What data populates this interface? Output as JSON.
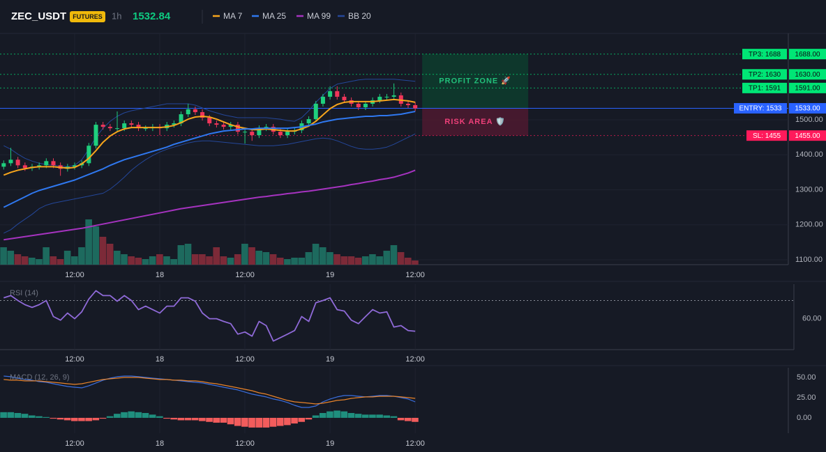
{
  "header": {
    "symbol": "ZEC_USDT",
    "badge": "FUTURES",
    "interval": "1h",
    "price": 1532.84
  },
  "chart_data": [
    {
      "type": "candlestick",
      "categories": [
        null,
        null,
        null,
        null,
        null,
        null,
        null,
        null,
        null,
        null,
        "12:00",
        null,
        null,
        null,
        null,
        null,
        null,
        null,
        null,
        null,
        null,
        null,
        "18",
        null,
        null,
        null,
        null,
        null,
        null,
        null,
        null,
        null,
        null,
        null,
        "12:00",
        null,
        null,
        null,
        null,
        null,
        null,
        null,
        null,
        null,
        null,
        null,
        "19",
        null,
        null,
        null,
        null,
        null,
        null,
        null,
        null,
        null,
        null,
        null,
        "12:00"
      ],
      "open": [
        1366,
        1376,
        1386,
        1370,
        1362,
        1366,
        1370,
        1382,
        1370,
        1360,
        1366,
        1370,
        1376,
        1426,
        1486,
        1480,
        1476,
        1476,
        1490,
        1486,
        1476,
        1476,
        1480,
        1476,
        1486,
        1490,
        1516,
        1530,
        1522,
        1506,
        1490,
        1486,
        1480,
        1486,
        1466,
        1466,
        1456,
        1476,
        1480,
        1466,
        1456,
        1466,
        1470,
        1490,
        1502,
        1546,
        1566,
        1582,
        1566,
        1556,
        1546,
        1536,
        1546,
        1556,
        1566,
        1566,
        1570,
        1546,
        1542
      ],
      "high": [
        1384,
        1420,
        1394,
        1378,
        1374,
        1378,
        1390,
        1390,
        1378,
        1374,
        1378,
        1384,
        1434,
        1494,
        1494,
        1488,
        1524,
        1498,
        1498,
        1494,
        1484,
        1488,
        1488,
        1494,
        1498,
        1524,
        1546,
        1538,
        1530,
        1514,
        1498,
        1494,
        1494,
        1494,
        1474,
        1474,
        1484,
        1488,
        1488,
        1474,
        1474,
        1478,
        1498,
        1510,
        1554,
        1574,
        1596,
        1596,
        1574,
        1564,
        1554,
        1554,
        1564,
        1574,
        1574,
        1604,
        1578,
        1554,
        1550
      ],
      "low": [
        1358,
        1368,
        1362,
        1354,
        1354,
        1358,
        1362,
        1362,
        1340,
        1352,
        1358,
        1362,
        1368,
        1418,
        1472,
        1468,
        1468,
        1468,
        1478,
        1468,
        1468,
        1468,
        1456,
        1468,
        1478,
        1482,
        1508,
        1514,
        1498,
        1482,
        1478,
        1472,
        1472,
        1458,
        1432,
        1440,
        1448,
        1468,
        1458,
        1448,
        1448,
        1458,
        1462,
        1482,
        1494,
        1538,
        1558,
        1558,
        1548,
        1538,
        1528,
        1528,
        1538,
        1548,
        1558,
        1558,
        1538,
        1534,
        1525
      ],
      "close": [
        1376,
        1386,
        1370,
        1362,
        1366,
        1370,
        1382,
        1370,
        1360,
        1366,
        1370,
        1376,
        1426,
        1486,
        1480,
        1476,
        1476,
        1490,
        1486,
        1476,
        1476,
        1480,
        1476,
        1486,
        1490,
        1516,
        1530,
        1522,
        1506,
        1490,
        1486,
        1480,
        1486,
        1466,
        1466,
        1456,
        1476,
        1480,
        1466,
        1456,
        1466,
        1470,
        1490,
        1502,
        1546,
        1566,
        1582,
        1566,
        1556,
        1546,
        1536,
        1546,
        1556,
        1566,
        1566,
        1570,
        1546,
        1542,
        1532.84
      ],
      "volume": [
        25,
        20,
        15,
        12,
        10,
        8,
        25,
        12,
        8,
        20,
        12,
        25,
        65,
        55,
        40,
        30,
        20,
        15,
        12,
        10,
        8,
        12,
        15,
        12,
        8,
        28,
        30,
        15,
        15,
        12,
        25,
        12,
        10,
        15,
        30,
        25,
        20,
        18,
        15,
        10,
        8,
        10,
        10,
        18,
        30,
        25,
        18,
        15,
        12,
        12,
        10,
        12,
        15,
        12,
        20,
        28,
        18,
        10,
        6
      ],
      "up_color": "#1fcf7d",
      "down_color": "#f0365a",
      "volume_up_color": "#1d6a5e",
      "volume_down_color": "#7c2a38",
      "series": [
        {
          "name": "MA 7",
          "color": "#f7a51c",
          "values": [
            1342,
            1350,
            1356,
            1360,
            1364,
            1366,
            1366,
            1366,
            1364,
            1362,
            1364,
            1374,
            1390,
            1412,
            1436,
            1454,
            1466,
            1474,
            1478,
            1478,
            1478,
            1478,
            1478,
            1480,
            1484,
            1492,
            1502,
            1508,
            1510,
            1508,
            1502,
            1494,
            1486,
            1480,
            1476,
            1472,
            1472,
            1474,
            1472,
            1470,
            1468,
            1468,
            1474,
            1482,
            1496,
            1514,
            1532,
            1544,
            1550,
            1552,
            1552,
            1552,
            1552,
            1554,
            1556,
            1558,
            1556,
            1554,
            1550
          ]
        },
        {
          "name": "MA 25",
          "color": "#2f78f0",
          "values": [
            1250,
            1260,
            1270,
            1280,
            1290,
            1298,
            1304,
            1310,
            1316,
            1322,
            1328,
            1336,
            1344,
            1352,
            1360,
            1370,
            1378,
            1386,
            1392,
            1398,
            1404,
            1410,
            1416,
            1422,
            1430,
            1436,
            1442,
            1448,
            1454,
            1460,
            1464,
            1468,
            1470,
            1472,
            1474,
            1474,
            1476,
            1476,
            1476,
            1476,
            1476,
            1478,
            1480,
            1484,
            1488,
            1494,
            1498,
            1502,
            1504,
            1506,
            1508,
            1510,
            1510,
            1512,
            1512,
            1514,
            1516,
            1520,
            1524
          ]
        },
        {
          "name": "MA 99",
          "color": "#a633c0",
          "values": [
            1157,
            1160,
            1163,
            1166,
            1169,
            1172,
            1175,
            1178,
            1181,
            1184,
            1187,
            1190,
            1194,
            1198,
            1202,
            1206,
            1210,
            1214,
            1218,
            1222,
            1226,
            1230,
            1234,
            1238,
            1242,
            1246,
            1249,
            1252,
            1255,
            1258,
            1261,
            1264,
            1267,
            1270,
            1273,
            1276,
            1279,
            1281,
            1284,
            1286,
            1289,
            1291,
            1294,
            1296,
            1299,
            1302,
            1305,
            1308,
            1311,
            1315,
            1318,
            1322,
            1325,
            1329,
            1332,
            1336,
            1342,
            1348,
            1356
          ]
        },
        {
          "name": "BB 20",
          "color": "#24479a",
          "values": [
            1426,
            1416,
            1402,
            1390,
            1382,
            1376,
            1372,
            1370,
            1368,
            1366,
            1370,
            1386,
            1416,
            1450,
            1476,
            1496,
            1510,
            1520,
            1526,
            1530,
            1534,
            1538,
            1542,
            1546,
            1546,
            1546,
            1546,
            1542,
            1534,
            1526,
            1520,
            1514,
            1510,
            1506,
            1506,
            1506,
            1506,
            1506,
            1504,
            1502,
            1498,
            1496,
            1506,
            1526,
            1550,
            1570,
            1590,
            1602,
            1606,
            1610,
            1614,
            1616,
            1616,
            1616,
            1616,
            1616,
            1614,
            1612,
            1610
          ],
          "lower": [
            1176,
            1186,
            1202,
            1216,
            1230,
            1246,
            1256,
            1262,
            1266,
            1270,
            1274,
            1278,
            1282,
            1286,
            1290,
            1302,
            1318,
            1336,
            1356,
            1372,
            1386,
            1398,
            1408,
            1416,
            1422,
            1428,
            1434,
            1438,
            1440,
            1440,
            1438,
            1436,
            1434,
            1432,
            1430,
            1428,
            1426,
            1426,
            1426,
            1428,
            1430,
            1434,
            1438,
            1442,
            1446,
            1448,
            1446,
            1440,
            1432,
            1424,
            1418,
            1416,
            1416,
            1418,
            1422,
            1430,
            1440,
            1450,
            1460
          ]
        }
      ],
      "ylim": [
        1086,
        1747
      ],
      "yticks": [
        {
          "value": 1100,
          "label": "1100.00"
        },
        {
          "value": 1200,
          "label": "1200.00"
        },
        {
          "value": 1300,
          "label": "1300.00"
        },
        {
          "value": 1400,
          "label": "1400.00"
        },
        {
          "value": 1500,
          "label": "1500.00"
        }
      ],
      "grid": true,
      "levels": [
        {
          "label": "TP3: 1688",
          "value": 1688,
          "price_label": "1688.00",
          "color": "#00e676",
          "text_color": "#0b0e14",
          "line_style": "dotted"
        },
        {
          "label": "TP2: 1630",
          "value": 1630,
          "price_label": "1630.00",
          "color": "#00e676",
          "text_color": "#0b0e14",
          "line_style": "dotted"
        },
        {
          "label": "TP1: 1591",
          "value": 1591,
          "price_label": "1591.00",
          "color": "#00e676",
          "text_color": "#0b0e14",
          "line_style": "dotted"
        },
        {
          "label": "ENTRY: 1533",
          "value": 1533,
          "price_label": "1533.00",
          "color": "#2962ff",
          "text_color": "#ffffff",
          "line_style": "solid"
        },
        {
          "label": "SL: 1455",
          "value": 1455,
          "price_label": "1455.00",
          "color": "#ff1a5b",
          "text_color": "#ffffff",
          "line_style": "dotted"
        }
      ],
      "zones": [
        {
          "label": "PROFIT ZONE 🚀",
          "from": 1533,
          "to": 1688,
          "color": "#0d3b2e",
          "text_color": "#22c07a"
        },
        {
          "label": "RISK AREA 🛡️",
          "from": 1455,
          "to": 1533,
          "color": "#4a1a30",
          "text_color": "#f0407a"
        }
      ]
    },
    {
      "type": "line",
      "title": "RSI (14)",
      "categories": [
        null,
        null,
        null,
        null,
        null,
        null,
        null,
        null,
        null,
        null,
        "12:00",
        null,
        null,
        null,
        null,
        null,
        null,
        null,
        null,
        null,
        null,
        null,
        "18",
        null,
        null,
        null,
        null,
        null,
        null,
        null,
        null,
        null,
        null,
        null,
        "12:00",
        null,
        null,
        null,
        null,
        null,
        null,
        null,
        null,
        null,
        null,
        null,
        "19",
        null,
        null,
        null,
        null,
        null,
        null,
        null,
        null,
        null,
        null,
        null,
        "12:00"
      ],
      "series": [
        {
          "color": "#8f6ad8",
          "values": [
            71.5,
            72.7,
            70,
            67.7,
            66.2,
            67.7,
            70,
            61.2,
            59.2,
            63.1,
            60,
            63.8,
            70.8,
            75.4,
            72.7,
            72.7,
            69.6,
            72.7,
            70,
            65,
            66.9,
            65,
            63.1,
            66.9,
            66.9,
            71.5,
            71.5,
            69.6,
            63.1,
            60,
            60,
            58.5,
            57.3,
            51.5,
            52.7,
            50.4,
            58.5,
            56.2,
            47.7,
            49.6,
            51.5,
            53.5,
            61.2,
            58.5,
            68.8,
            70,
            71.5,
            65,
            64.2,
            59.2,
            57.3,
            61.2,
            65,
            63.1,
            63.8,
            55.4,
            56.2,
            53.5,
            53.1
          ]
        }
      ],
      "hlines": [
        70
      ],
      "ylim": [
        43,
        79
      ],
      "yticks": [
        {
          "value": 60,
          "label": "60.00"
        }
      ]
    },
    {
      "type": "macd",
      "title": "MACD (12, 26, 9)",
      "categories": [
        null,
        null,
        null,
        null,
        null,
        null,
        null,
        null,
        null,
        null,
        "12:00",
        null,
        null,
        null,
        null,
        null,
        null,
        null,
        null,
        null,
        null,
        null,
        "18",
        null,
        null,
        null,
        null,
        null,
        null,
        null,
        null,
        null,
        null,
        null,
        "12:00",
        null,
        null,
        null,
        null,
        null,
        null,
        null,
        null,
        null,
        null,
        null,
        "19",
        null,
        null,
        null,
        null,
        null,
        null,
        null,
        null,
        null,
        null,
        null,
        "12:00"
      ],
      "series": [
        {
          "color": "#3a6fe0",
          "values": [
            51.7,
            50.9,
            49.1,
            47.4,
            46.6,
            44.8,
            44,
            42.2,
            40.5,
            38.8,
            37.9,
            37.1,
            39.7,
            43.1,
            46.6,
            49.1,
            50.9,
            51.7,
            51.7,
            50.9,
            50,
            49.1,
            48.3,
            47.4,
            46.6,
            45.7,
            44.8,
            44,
            43.1,
            41.4,
            39.7,
            37.9,
            36.2,
            34.5,
            31.9,
            29.3,
            27.6,
            25.9,
            23.3,
            21.6,
            19,
            15.5,
            12.9,
            12.9,
            14.7,
            19.8,
            23.3,
            25.9,
            27.6,
            27.6,
            26.7,
            25.9,
            26.7,
            27.6,
            27.6,
            26.7,
            25,
            23.3,
            19.8
          ]
        },
        {
          "color": "#e8832a",
          "values": [
            47.4,
            46.6,
            46.6,
            45.7,
            45.7,
            45.7,
            44.8,
            44,
            43.1,
            42.2,
            41.4,
            42.2,
            44,
            45.7,
            47.4,
            48.3,
            49.1,
            50,
            50,
            50,
            49.1,
            48.3,
            47.4,
            47.4,
            46.6,
            46.6,
            45.7,
            45.7,
            44.8,
            43.1,
            42.2,
            40.5,
            38.8,
            37.1,
            35.3,
            33.6,
            31,
            29.3,
            26.7,
            24.1,
            21.6,
            19.8,
            19,
            18.1,
            17.2,
            18.1,
            19.8,
            21.6,
            22.4,
            24.1,
            25,
            25.9,
            25.9,
            26.7,
            26.7,
            26.7,
            25.9,
            25,
            24.1
          ]
        }
      ],
      "histogram": [
        7,
        7,
        6,
        5,
        3,
        2,
        1,
        -1,
        -2,
        -3,
        -4,
        -4,
        -4,
        -3,
        -1,
        2,
        5,
        7,
        8,
        7,
        6,
        4,
        2,
        -1,
        -2,
        -3,
        -3,
        -3,
        -4,
        -5,
        -6,
        -6,
        -8,
        -10,
        -11,
        -12,
        -12,
        -12,
        -11,
        -10,
        -9,
        -7,
        -5,
        -2,
        3,
        6,
        8,
        9,
        8,
        6,
        5,
        4,
        4,
        4,
        3,
        2,
        -3,
        -4,
        -5
      ],
      "hist_up_color": "#1f8f7e",
      "hist_down_color": "#f25c5c",
      "ylim": [
        -19,
        62
      ],
      "yticks": [
        {
          "value": 0,
          "label": "0.00"
        },
        {
          "value": 25,
          "label": "25.00"
        },
        {
          "value": 50,
          "label": "50.00"
        }
      ]
    }
  ]
}
